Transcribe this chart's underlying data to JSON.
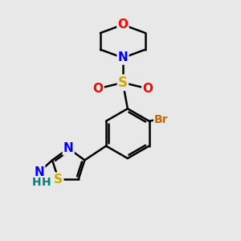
{
  "bg_color": "#e8e8e8",
  "bond_color": "#000000",
  "bond_width": 1.8,
  "atom_colors": {
    "O": "#ff0000",
    "N": "#0000ff",
    "S_yellow": "#ccaa00",
    "Br": "#cc6600",
    "C": "#000000",
    "H": "#008080"
  },
  "font_size": 10,
  "fig_bg": "#e8e8e8"
}
